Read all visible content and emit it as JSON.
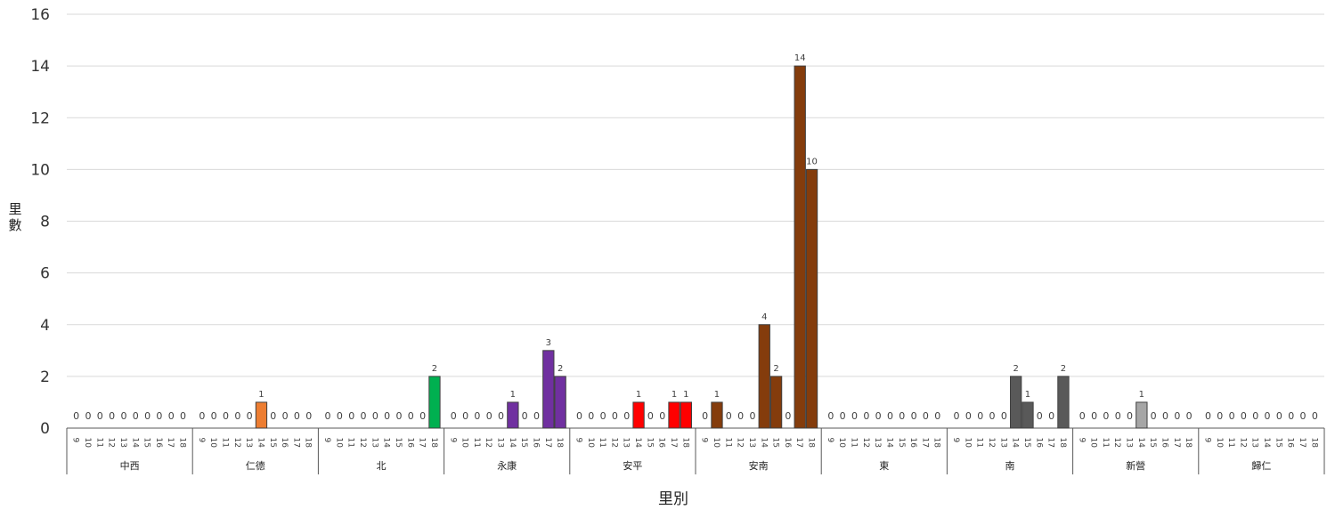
{
  "chart_data": {
    "type": "bar",
    "xlabel": "里別",
    "ylabel": "里數",
    "ylim": [
      0,
      16
    ],
    "yticks": [
      0,
      2,
      4,
      6,
      8,
      10,
      12,
      14,
      16
    ],
    "grid": true,
    "subcategories": [
      "9",
      "10",
      "11",
      "12",
      "13",
      "14",
      "15",
      "16",
      "17",
      "18"
    ],
    "groups": [
      {
        "name": "中西",
        "color": "#808080",
        "values": [
          0,
          0,
          0,
          0,
          0,
          0,
          0,
          0,
          0,
          0
        ]
      },
      {
        "name": "仁德",
        "color": "#ED7D31",
        "values": [
          0,
          0,
          0,
          0,
          0,
          1,
          0,
          0,
          0,
          0
        ]
      },
      {
        "name": "北",
        "color": "#00B050",
        "values": [
          0,
          0,
          0,
          0,
          0,
          0,
          0,
          0,
          0,
          2
        ]
      },
      {
        "name": "永康",
        "color": "#7030A0",
        "values": [
          0,
          0,
          0,
          0,
          0,
          1,
          0,
          0,
          3,
          2
        ]
      },
      {
        "name": "安平",
        "color": "#FF0000",
        "values": [
          0,
          0,
          0,
          0,
          0,
          1,
          0,
          0,
          1,
          1
        ]
      },
      {
        "name": "安南",
        "color": "#843C0C",
        "values": [
          0,
          1,
          0,
          0,
          0,
          4,
          2,
          0,
          14,
          10
        ]
      },
      {
        "name": "東",
        "color": "#808080",
        "values": [
          0,
          0,
          0,
          0,
          0,
          0,
          0,
          0,
          0,
          0
        ]
      },
      {
        "name": "南",
        "color": "#595959",
        "values": [
          0,
          0,
          0,
          0,
          0,
          2,
          1,
          0,
          0,
          2
        ]
      },
      {
        "name": "新營",
        "color": "#A6A6A6",
        "values": [
          0,
          0,
          0,
          0,
          0,
          1,
          0,
          0,
          0,
          0
        ]
      },
      {
        "name": "歸仁",
        "color": "#808080",
        "values": [
          0,
          0,
          0,
          0,
          0,
          0,
          0,
          0,
          0,
          0
        ]
      }
    ]
  }
}
